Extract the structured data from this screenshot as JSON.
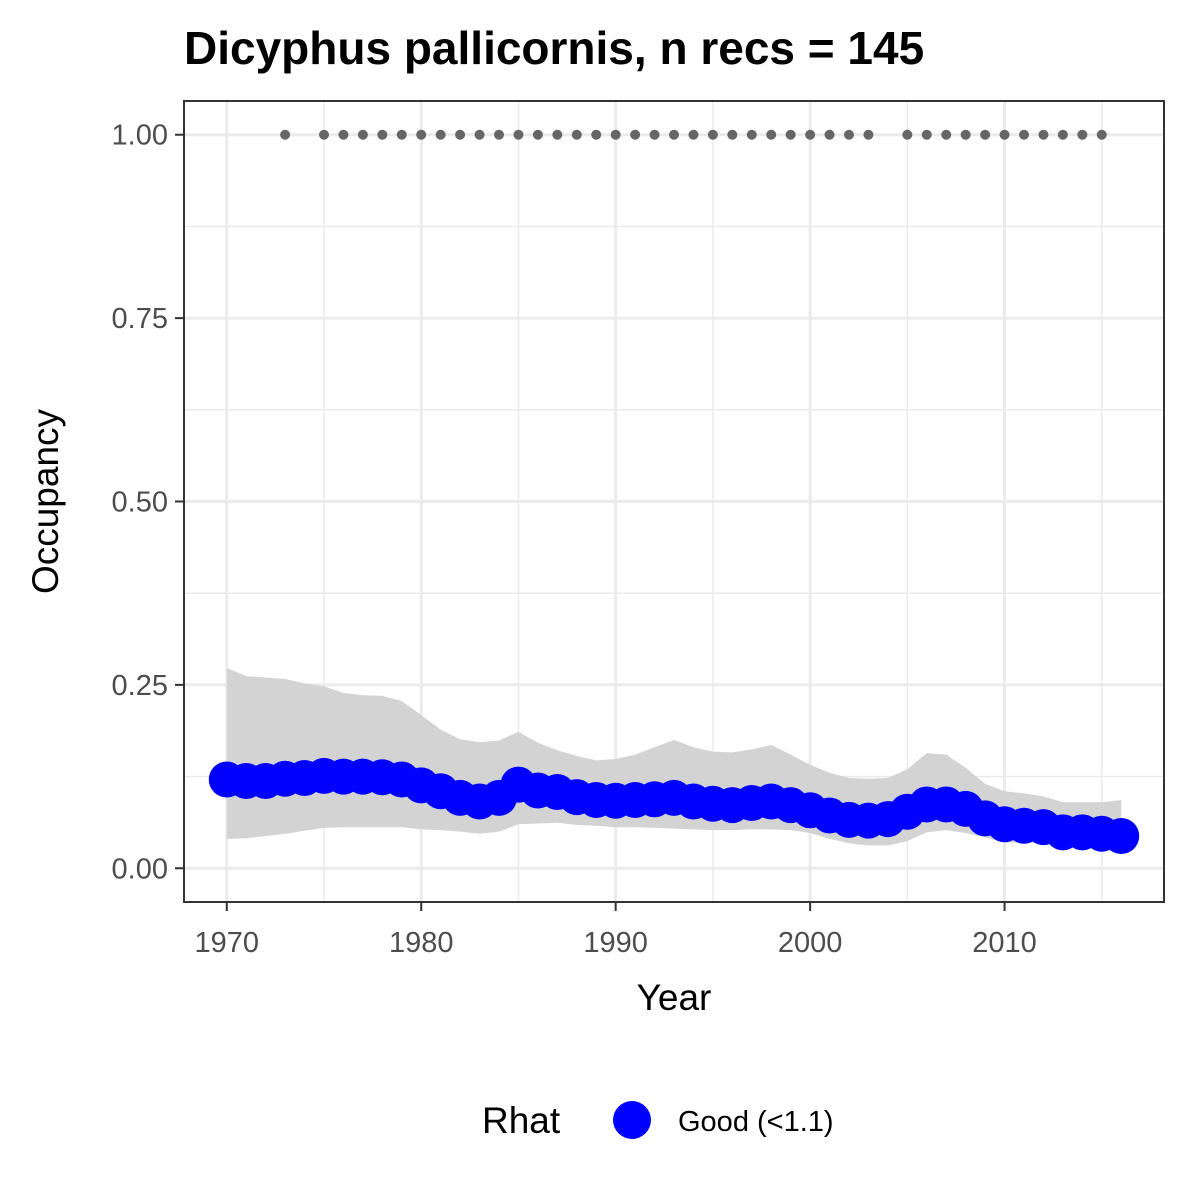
{
  "chart_data": {
    "type": "line",
    "title": "Dicyphus pallicornis, n recs = 145",
    "xlabel": "Year",
    "ylabel": "Occupancy",
    "xlim": [
      1967.8,
      1918.2
    ],
    "ylim": [
      -0.046,
      1.046
    ],
    "xticks": [
      1970,
      1980,
      1990,
      2000,
      2010
    ],
    "xtick_labels": [
      "1970",
      "1980",
      "1990",
      "2000",
      "2010"
    ],
    "yticks": [
      0,
      0.25,
      0.5,
      0.75,
      1.0
    ],
    "ytick_labels": [
      "0.00",
      "0.25",
      "0.50",
      "0.75",
      "1.00"
    ],
    "x_minor_breaks": [
      1975,
      1985,
      1995,
      2005,
      2015
    ],
    "y_minor_breaks": [
      0.125,
      0.375,
      0.625,
      0.875
    ],
    "grid": true,
    "colors": {
      "series": "#0000ff",
      "ribbon": "#d3d3d3",
      "record_points": "#666666",
      "grid": "#ebebeb",
      "panel_border": "#333333",
      "tick_label": "#4d4d4d"
    },
    "series": [
      {
        "x": [
          1970,
          1971,
          1972,
          1973,
          1974,
          1975,
          1976,
          1977,
          1978,
          1979,
          1980,
          1981,
          1982,
          1983,
          1984,
          1985,
          1986,
          1987,
          1988,
          1989,
          1990,
          1991,
          1992,
          1993,
          1994,
          1995,
          1996,
          1997,
          1998,
          1999,
          2000,
          2001,
          2002,
          2003,
          2004,
          2005,
          2006,
          2007,
          2008,
          2009,
          2010,
          2011,
          2012,
          2013,
          2014,
          2015,
          2016
        ],
        "values": [
          0.121,
          0.119,
          0.119,
          0.122,
          0.123,
          0.126,
          0.125,
          0.125,
          0.124,
          0.121,
          0.113,
          0.105,
          0.096,
          0.091,
          0.096,
          0.114,
          0.106,
          0.104,
          0.097,
          0.093,
          0.092,
          0.093,
          0.094,
          0.096,
          0.091,
          0.088,
          0.086,
          0.089,
          0.091,
          0.086,
          0.079,
          0.072,
          0.066,
          0.065,
          0.067,
          0.077,
          0.087,
          0.087,
          0.081,
          0.068,
          0.06,
          0.058,
          0.056,
          0.049,
          0.049,
          0.047,
          0.044
        ],
        "lower": [
          0.04,
          0.041,
          0.044,
          0.047,
          0.051,
          0.055,
          0.056,
          0.056,
          0.056,
          0.056,
          0.053,
          0.052,
          0.05,
          0.047,
          0.05,
          0.06,
          0.061,
          0.062,
          0.059,
          0.058,
          0.056,
          0.056,
          0.055,
          0.054,
          0.053,
          0.052,
          0.052,
          0.053,
          0.053,
          0.052,
          0.048,
          0.04,
          0.034,
          0.031,
          0.031,
          0.037,
          0.049,
          0.052,
          0.048,
          0.042,
          0.035,
          0.035,
          0.034,
          0.031,
          0.03,
          0.029,
          0.03
        ],
        "upper": [
          0.273,
          0.262,
          0.26,
          0.258,
          0.252,
          0.248,
          0.239,
          0.236,
          0.235,
          0.228,
          0.209,
          0.189,
          0.176,
          0.172,
          0.174,
          0.186,
          0.171,
          0.161,
          0.153,
          0.147,
          0.149,
          0.155,
          0.165,
          0.175,
          0.165,
          0.159,
          0.158,
          0.162,
          0.168,
          0.155,
          0.141,
          0.13,
          0.123,
          0.122,
          0.123,
          0.135,
          0.157,
          0.155,
          0.137,
          0.115,
          0.105,
          0.102,
          0.098,
          0.09,
          0.09,
          0.09,
          0.093
        ]
      }
    ],
    "record_years": [
      1973,
      1975,
      1976,
      1977,
      1978,
      1979,
      1980,
      1981,
      1982,
      1983,
      1984,
      1985,
      1986,
      1987,
      1988,
      1989,
      1990,
      1991,
      1992,
      1993,
      1994,
      1995,
      1996,
      1997,
      1998,
      1999,
      2000,
      2001,
      2002,
      2003,
      2005,
      2006,
      2007,
      2008,
      2009,
      2010,
      2011,
      2012,
      2013,
      2014,
      2015
    ],
    "record_value": 1.0,
    "legend": {
      "position": "bottom",
      "title": "Rhat",
      "entries": [
        {
          "label": "Good (<1.1)",
          "color": "#0000ff"
        }
      ]
    }
  }
}
